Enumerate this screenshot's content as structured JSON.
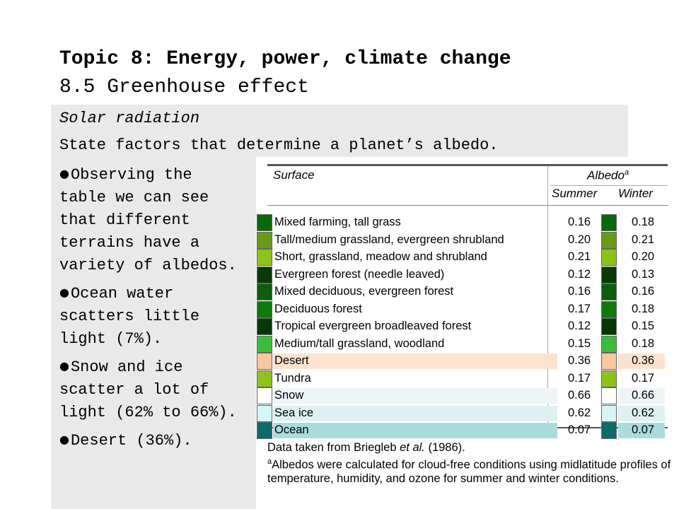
{
  "title": {
    "line1": "Topic 8: Energy, power, climate change",
    "line2": "8.5 Greenhouse effect"
  },
  "subtitle": "Solar radiation",
  "question": "State factors that determine a planet’s albedo.",
  "bullets": [
    "Observing the table we can see that different terrains have a variety of albedos.",
    "Ocean water scatters little light (7%).",
    "Snow and ice scatter a lot of light (62% to 66%).",
    "Desert (36%)."
  ],
  "table": {
    "header_surface": "Surface",
    "header_albedo": "Albedo",
    "header_albedo_note": "a",
    "header_summer": "Summer",
    "header_winter": "Winter",
    "rows": [
      {
        "name": "Mixed farming, tall grass",
        "summer": "0.16",
        "winter": "0.18",
        "color": "#0a6a0a",
        "highlight": ""
      },
      {
        "name": "Tall/medium grassland, evergreen shrubland",
        "summer": "0.20",
        "winter": "0.21",
        "color": "#6a9a1a",
        "highlight": ""
      },
      {
        "name": "Short, grassland, meadow and shrubland",
        "summer": "0.21",
        "winter": "0.20",
        "color": "#8ec21a",
        "highlight": ""
      },
      {
        "name": "Evergreen forest (needle leaved)",
        "summer": "0.12",
        "winter": "0.13",
        "color": "#083a08",
        "highlight": ""
      },
      {
        "name": "Mixed deciduous, evergreen forest",
        "summer": "0.16",
        "winter": "0.16",
        "color": "#0c5e0c",
        "highlight": ""
      },
      {
        "name": "Deciduous forest",
        "summer": "0.17",
        "winter": "0.18",
        "color": "#0e7a0e",
        "highlight": ""
      },
      {
        "name": "Tropical evergreen broadleaved forest",
        "summer": "0.12",
        "winter": "0.15",
        "color": "#063806",
        "highlight": ""
      },
      {
        "name": "Medium/tall grassland, woodland",
        "summer": "0.15",
        "winter": "0.18",
        "color": "#3cbc3c",
        "highlight": ""
      },
      {
        "name": "Desert",
        "summer": "0.36",
        "winter": "0.36",
        "color": "#f8c8a0",
        "highlight": "#fbe3cf"
      },
      {
        "name": "Tundra",
        "summer": "0.17",
        "winter": "0.17",
        "color": "#8ec21a",
        "highlight": ""
      },
      {
        "name": "Snow",
        "summer": "0.66",
        "winter": "0.66",
        "color": "#ffffff",
        "highlight": "#eef5f6"
      },
      {
        "name": "Sea ice",
        "summer": "0.62",
        "winter": "0.62",
        "color": "#d4f6f6",
        "highlight": "#dff0f2"
      },
      {
        "name": "Ocean",
        "summer": "0.07",
        "winter": "0.07",
        "color": "#0c6a6a",
        "highlight": "#a9dcdf"
      }
    ],
    "source_prefix": "Data taken from Briegleb ",
    "source_italic": "et al.",
    "source_suffix": " (1986).",
    "footnote_mark": "a",
    "footnote": "Albedos were calculated for cloud-free conditions using midlatitude profiles of temperature, humidity, and ozone for summer and winter conditions."
  }
}
